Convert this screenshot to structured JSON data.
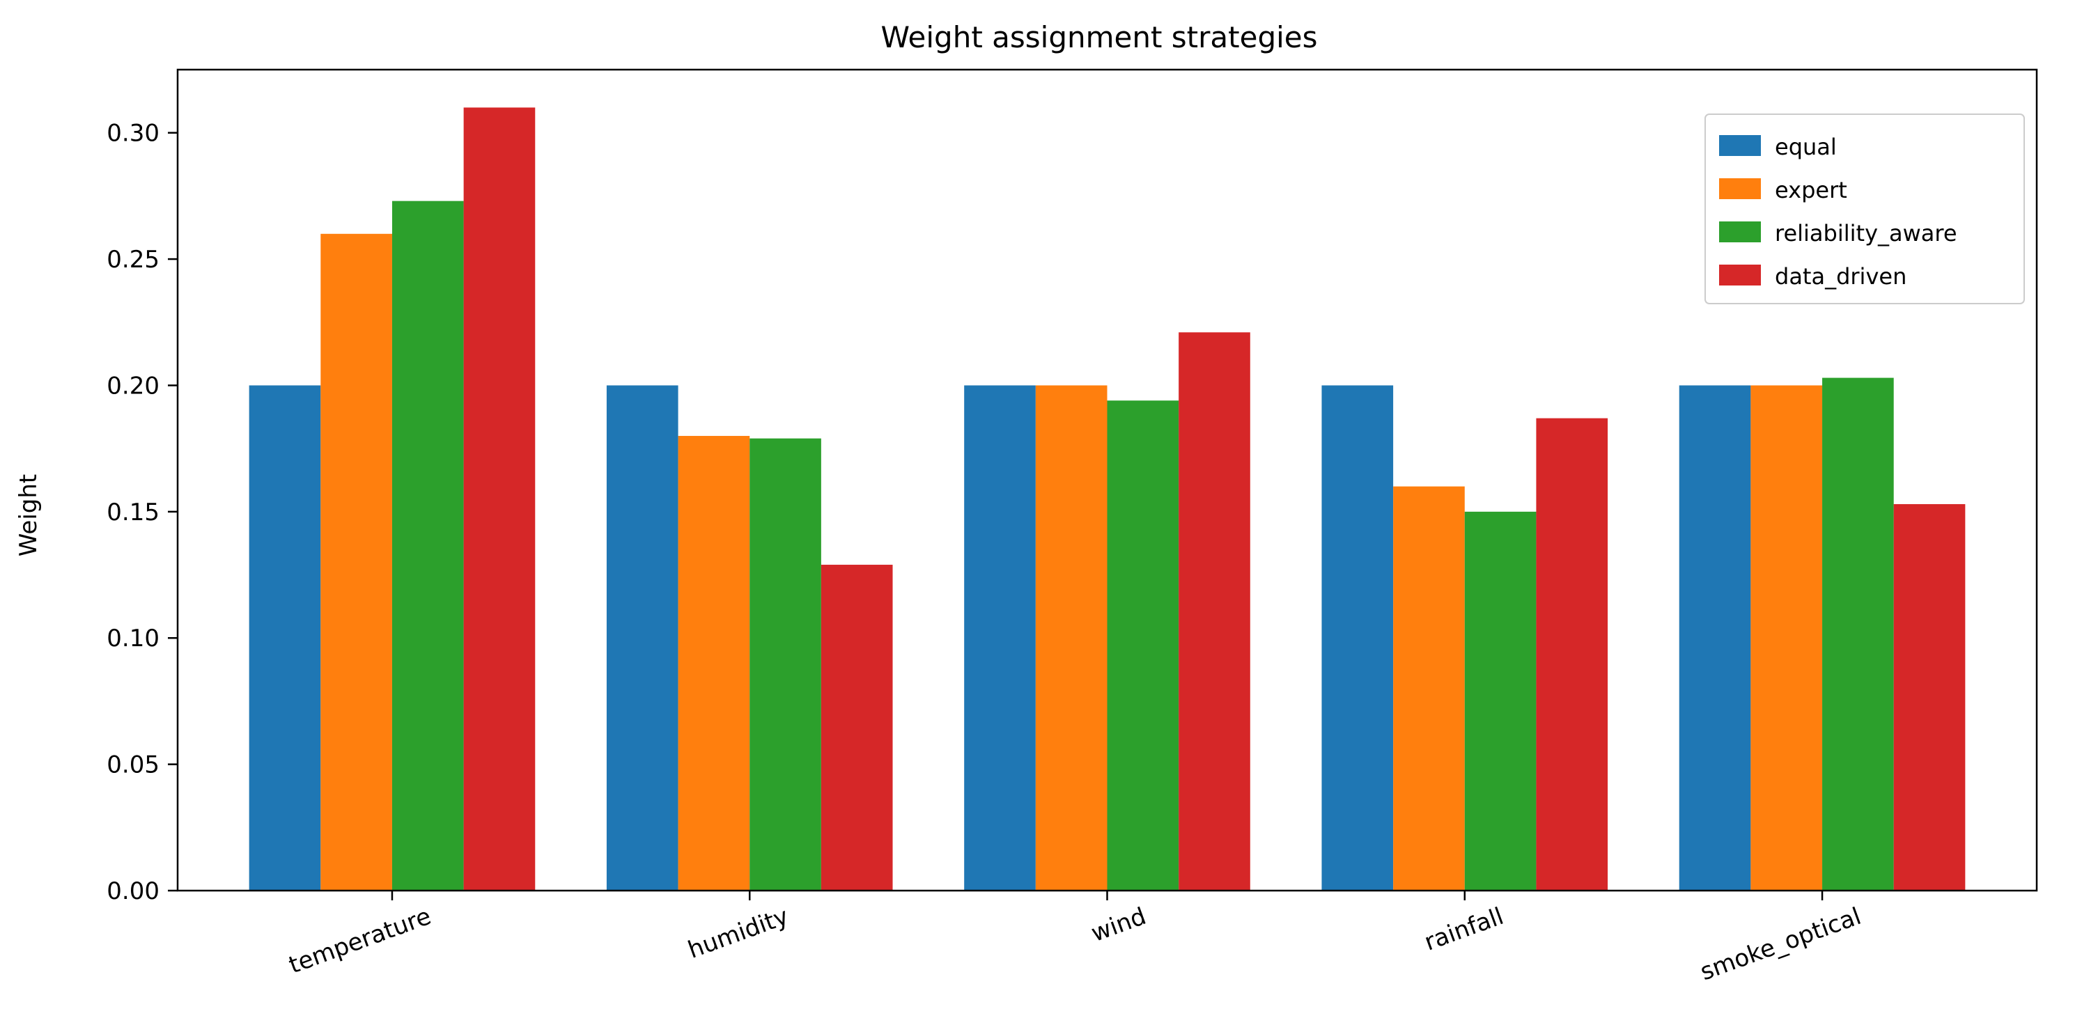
{
  "chart_data": {
    "type": "bar",
    "title": "Weight assignment strategies",
    "xlabel": "",
    "ylabel": "Weight",
    "categories": [
      "temperature",
      "humidity",
      "wind",
      "rainfall",
      "smoke_optical"
    ],
    "series": [
      {
        "name": "equal",
        "color": "#1f77b4",
        "values": [
          0.2,
          0.2,
          0.2,
          0.2,
          0.2
        ]
      },
      {
        "name": "expert",
        "color": "#ff7f0e",
        "values": [
          0.26,
          0.18,
          0.2,
          0.16,
          0.2
        ]
      },
      {
        "name": "reliability_aware",
        "color": "#2ca02c",
        "values": [
          0.273,
          0.179,
          0.194,
          0.15,
          0.203
        ]
      },
      {
        "name": "data_driven",
        "color": "#d62728",
        "values": [
          0.31,
          0.129,
          0.221,
          0.187,
          0.153
        ]
      }
    ],
    "ylim": [
      0,
      0.325
    ],
    "yticks": [
      0.0,
      0.05,
      0.1,
      0.15,
      0.2,
      0.25,
      0.3
    ],
    "ytick_labels": [
      "0.00",
      "0.05",
      "0.10",
      "0.15",
      "0.20",
      "0.25",
      "0.30"
    ],
    "grid": false,
    "legend_position": "top-right"
  }
}
